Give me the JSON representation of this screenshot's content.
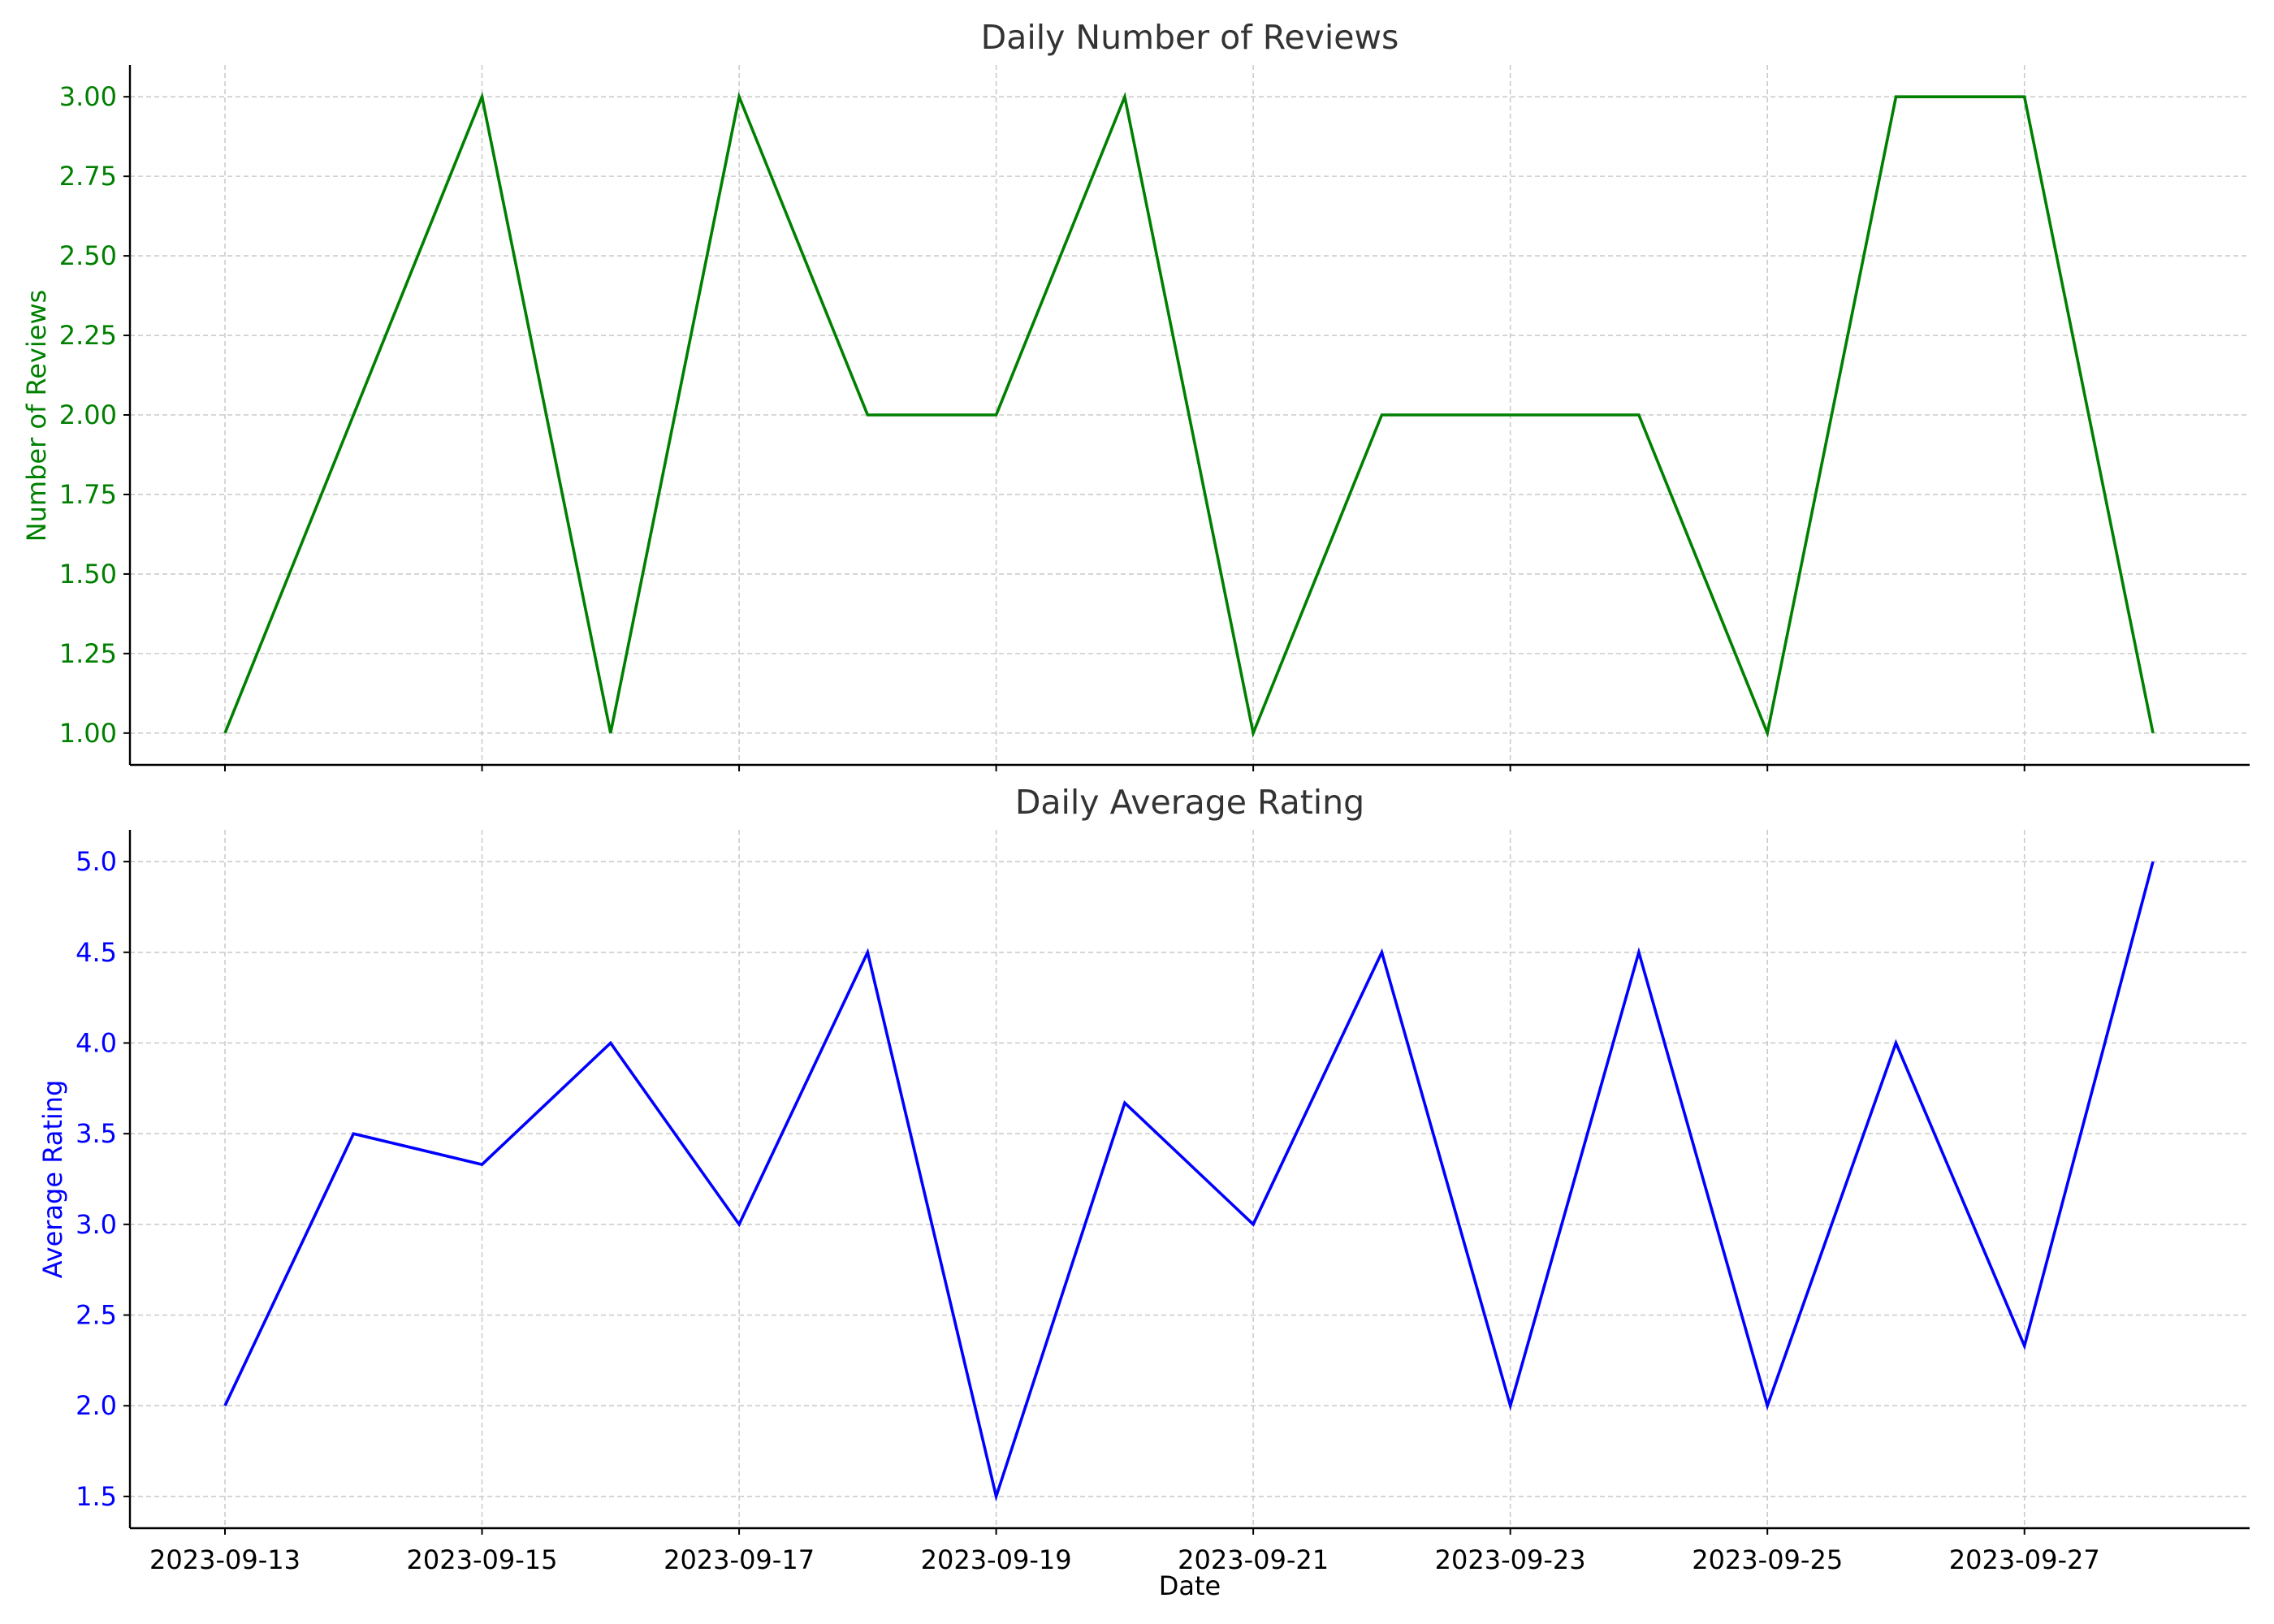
{
  "chart_data": [
    {
      "type": "line",
      "title": "Daily Number of Reviews",
      "xlabel": "",
      "ylabel": "Number of Reviews",
      "color": "#008000",
      "x": [
        "2023-09-13",
        "2023-09-14",
        "2023-09-15",
        "2023-09-16",
        "2023-09-17",
        "2023-09-18",
        "2023-09-19",
        "2023-09-20",
        "2023-09-21",
        "2023-09-22",
        "2023-09-23",
        "2023-09-24",
        "2023-09-25",
        "2023-09-26",
        "2023-09-27",
        "2023-09-28"
      ],
      "values": [
        1,
        2,
        3,
        1,
        3,
        2,
        2,
        3,
        1,
        2,
        2,
        2,
        1,
        3,
        3,
        1
      ],
      "ylim": [
        0.9,
        3.1
      ],
      "yticks": [
        "1.00",
        "1.25",
        "1.50",
        "1.75",
        "2.00",
        "2.25",
        "2.50",
        "2.75",
        "3.00"
      ],
      "xticks": [],
      "grid": true
    },
    {
      "type": "line",
      "title": "Daily Average Rating",
      "xlabel": "Date",
      "ylabel": "Average Rating",
      "color": "#0000ff",
      "x": [
        "2023-09-13",
        "2023-09-14",
        "2023-09-15",
        "2023-09-16",
        "2023-09-17",
        "2023-09-18",
        "2023-09-19",
        "2023-09-20",
        "2023-09-21",
        "2023-09-22",
        "2023-09-23",
        "2023-09-24",
        "2023-09-25",
        "2023-09-26",
        "2023-09-27",
        "2023-09-28"
      ],
      "values": [
        2.0,
        3.5,
        3.33,
        4.0,
        3.0,
        4.5,
        1.5,
        3.67,
        3.0,
        4.5,
        2.0,
        4.5,
        2.0,
        4.0,
        2.33,
        5.0
      ],
      "ylim": [
        1.325,
        5.175
      ],
      "yticks": [
        "1.5",
        "2.0",
        "2.5",
        "3.0",
        "3.5",
        "4.0",
        "4.5",
        "5.0"
      ],
      "xticks": [
        "2023-09-13",
        "2023-09-15",
        "2023-09-17",
        "2023-09-19",
        "2023-09-21",
        "2023-09-23",
        "2023-09-25",
        "2023-09-27"
      ],
      "grid": true
    }
  ]
}
